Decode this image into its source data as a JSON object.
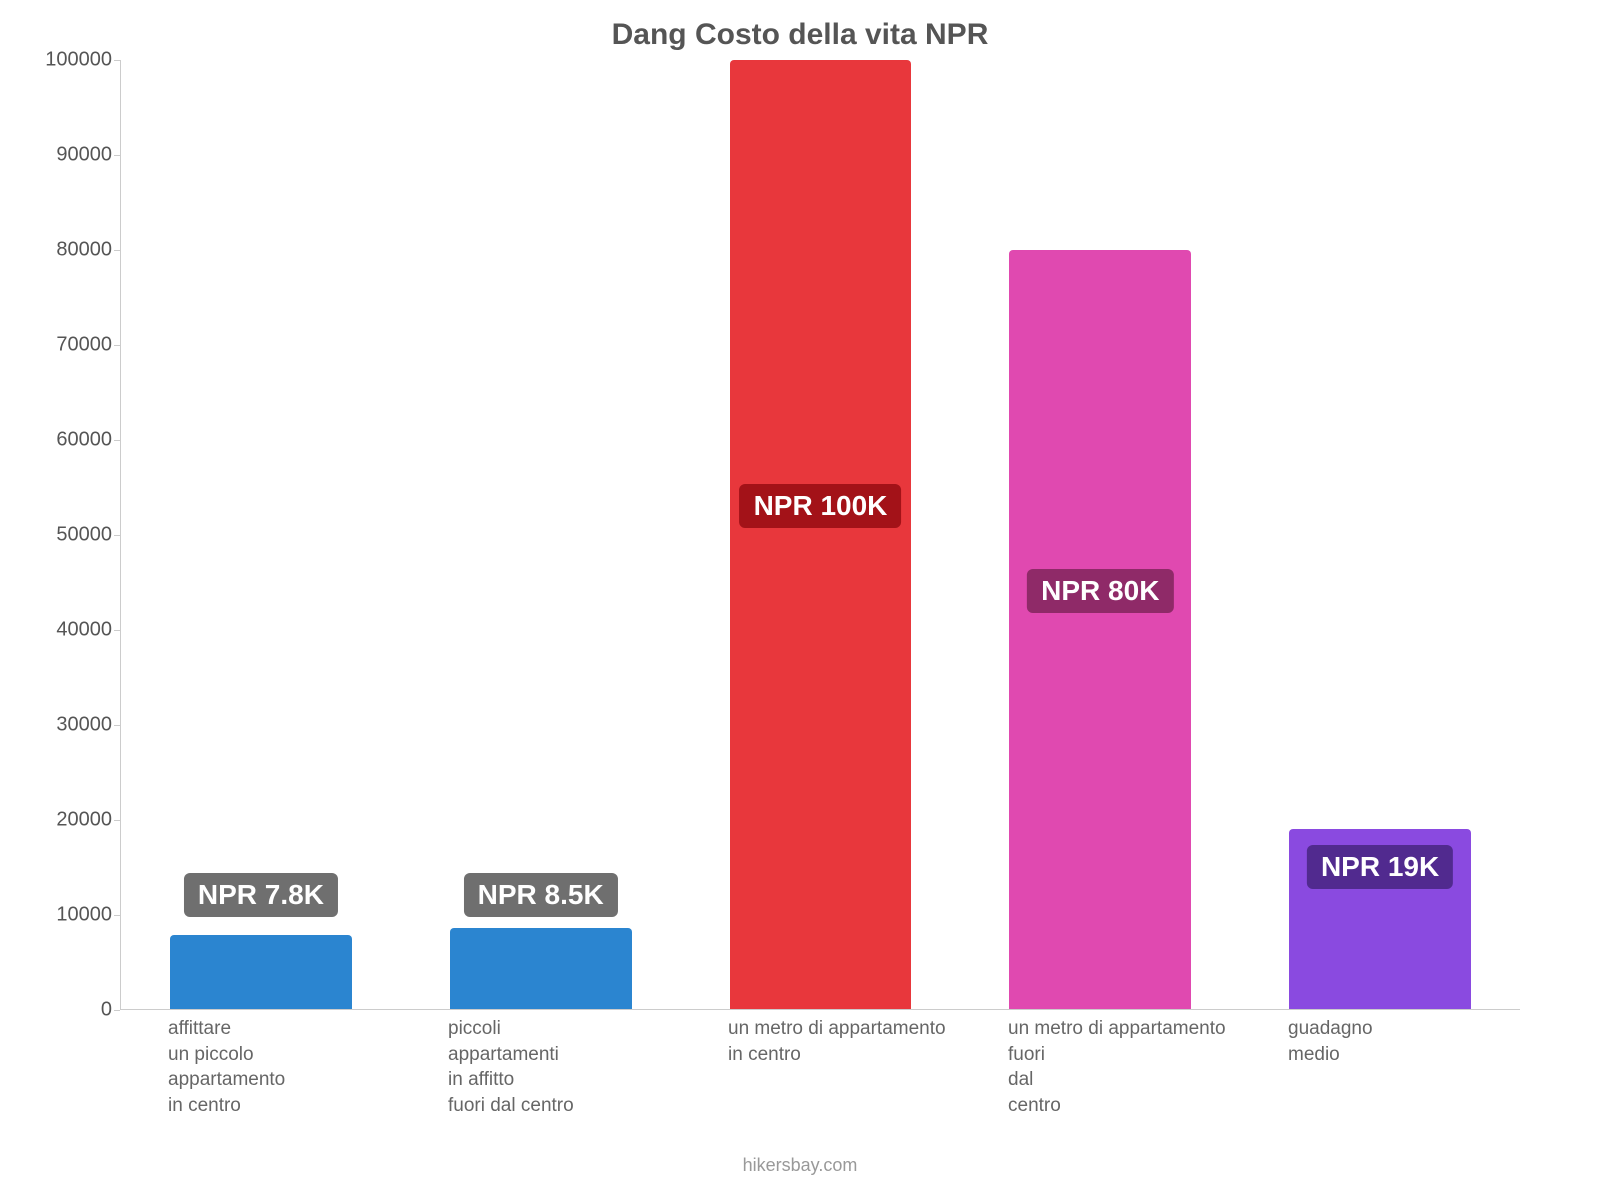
{
  "chart": {
    "type": "bar",
    "title": "Dang Costo della vita NPR",
    "title_color": "#555555",
    "title_fontsize": 30,
    "background_color": "#ffffff",
    "axis_color": "#cccccc",
    "ylim_min": 0,
    "ylim_max": 100000,
    "ytick_step": 10000,
    "ytick_color": "#555555",
    "ytick_fontsize": 20,
    "bar_width_pct": 65,
    "value_label_fontsize": 28,
    "value_label_text_color": "#ffffff",
    "x_label_fontsize": 19,
    "x_label_color": "#666666",
    "footer": "hikersbay.com",
    "footer_color": "#999999",
    "footer_fontsize": 18,
    "yticks": [
      {
        "v": 0,
        "label": "0"
      },
      {
        "v": 10000,
        "label": "10000"
      },
      {
        "v": 20000,
        "label": "20000"
      },
      {
        "v": 30000,
        "label": "30000"
      },
      {
        "v": 40000,
        "label": "40000"
      },
      {
        "v": 50000,
        "label": "50000"
      },
      {
        "v": 60000,
        "label": "60000"
      },
      {
        "v": 70000,
        "label": "70000"
      },
      {
        "v": 80000,
        "label": "80000"
      },
      {
        "v": 90000,
        "label": "90000"
      },
      {
        "v": 100000,
        "label": "100000"
      }
    ],
    "bars": [
      {
        "category": "affittare\nun piccolo\nappartamento\nin centro",
        "value": 7800,
        "value_label": "NPR 7.8K",
        "bar_color": "#2b85d0",
        "badge_color": "#6f6f6f",
        "label_y_pct": 12
      },
      {
        "category": "piccoli\nappartamenti\nin affitto\nfuori dal centro",
        "value": 8500,
        "value_label": "NPR 8.5K",
        "bar_color": "#2b85d0",
        "badge_color": "#6f6f6f",
        "label_y_pct": 12
      },
      {
        "category": "un metro di appartamento\nin centro",
        "value": 100000,
        "value_label": "NPR 100K",
        "bar_color": "#e8373c",
        "badge_color": "#a31218",
        "label_y_pct": 53
      },
      {
        "category": "un metro di appartamento\nfuori\ndal\ncentro",
        "value": 80000,
        "value_label": "NPR 80K",
        "bar_color": "#e049b0",
        "badge_color": "#8f2a68",
        "label_y_pct": 44
      },
      {
        "category": "guadagno\nmedio",
        "value": 19000,
        "value_label": "NPR 19K",
        "bar_color": "#8a4ae0",
        "badge_color": "#512a8f",
        "label_y_pct": 15
      }
    ]
  }
}
